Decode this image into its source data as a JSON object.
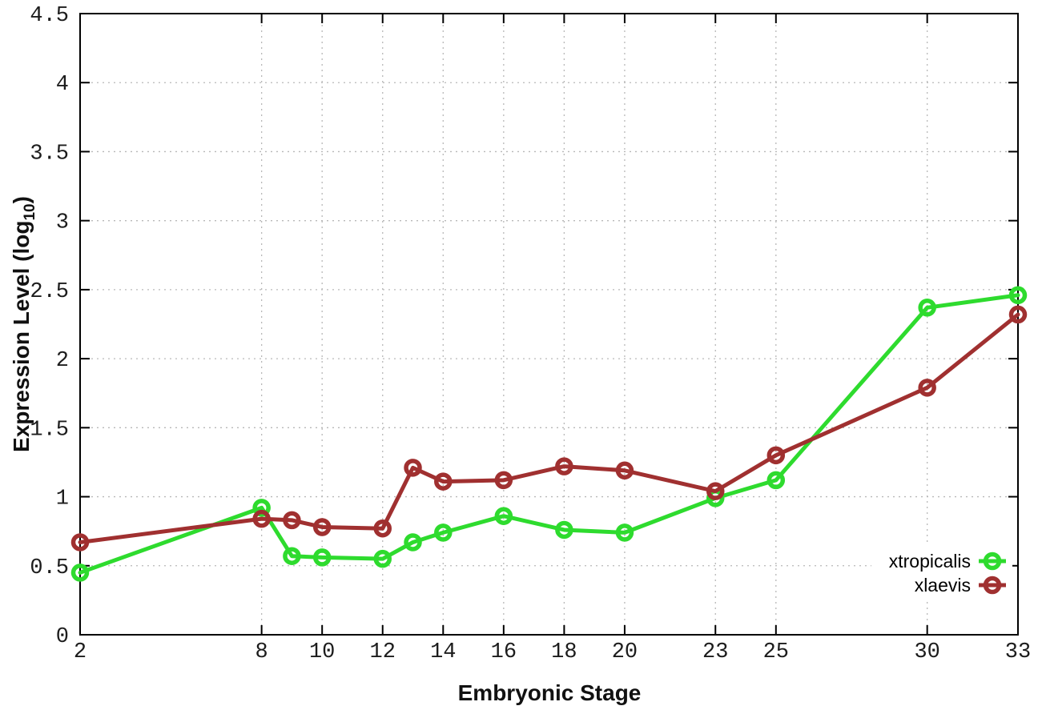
{
  "chart_data": {
    "type": "line",
    "title": "",
    "xlabel": "Embryonic Stage",
    "ylabel": "Expression Level (log10)",
    "ylabel_parts": {
      "main": "Expression Level (log",
      "sub": "10",
      "end": ")"
    },
    "x": [
      2,
      8,
      9,
      10,
      12,
      13,
      14,
      16,
      18,
      20,
      23,
      25,
      30,
      33
    ],
    "series": [
      {
        "name": "xtropicalis",
        "color": "#2edb2e",
        "values": [
          0.45,
          0.92,
          0.57,
          0.56,
          0.55,
          0.67,
          0.74,
          0.86,
          0.76,
          0.74,
          0.99,
          1.12,
          2.37,
          2.46
        ]
      },
      {
        "name": "xlaevis",
        "color": "#a03030",
        "values": [
          0.67,
          0.84,
          0.83,
          0.78,
          0.77,
          1.21,
          1.11,
          1.12,
          1.22,
          1.19,
          1.04,
          1.3,
          1.79,
          2.32
        ]
      }
    ],
    "xlim": [
      2,
      33
    ],
    "ylim": [
      0,
      4.5
    ],
    "xticks": [
      2,
      8,
      10,
      12,
      14,
      16,
      18,
      20,
      23,
      25,
      30,
      33
    ],
    "xtick_labels": [
      "2",
      "8",
      "10",
      "12",
      "14",
      "16",
      "18",
      "20",
      "23",
      "25",
      "30",
      "33"
    ],
    "yticks": [
      0,
      0.5,
      1,
      1.5,
      2,
      2.5,
      3,
      3.5,
      4,
      4.5
    ],
    "ytick_labels": [
      "0",
      "0.5",
      "1",
      "1.5",
      "2",
      "2.5",
      "3",
      "3.5",
      "4",
      "4.5"
    ],
    "grid": true,
    "marker": "open-circle",
    "legend_position": "bottom-right",
    "colors": {
      "background": "#ffffff",
      "border": "#000000",
      "grid": "#b8b8b8",
      "text": "#1c1c1c"
    }
  }
}
